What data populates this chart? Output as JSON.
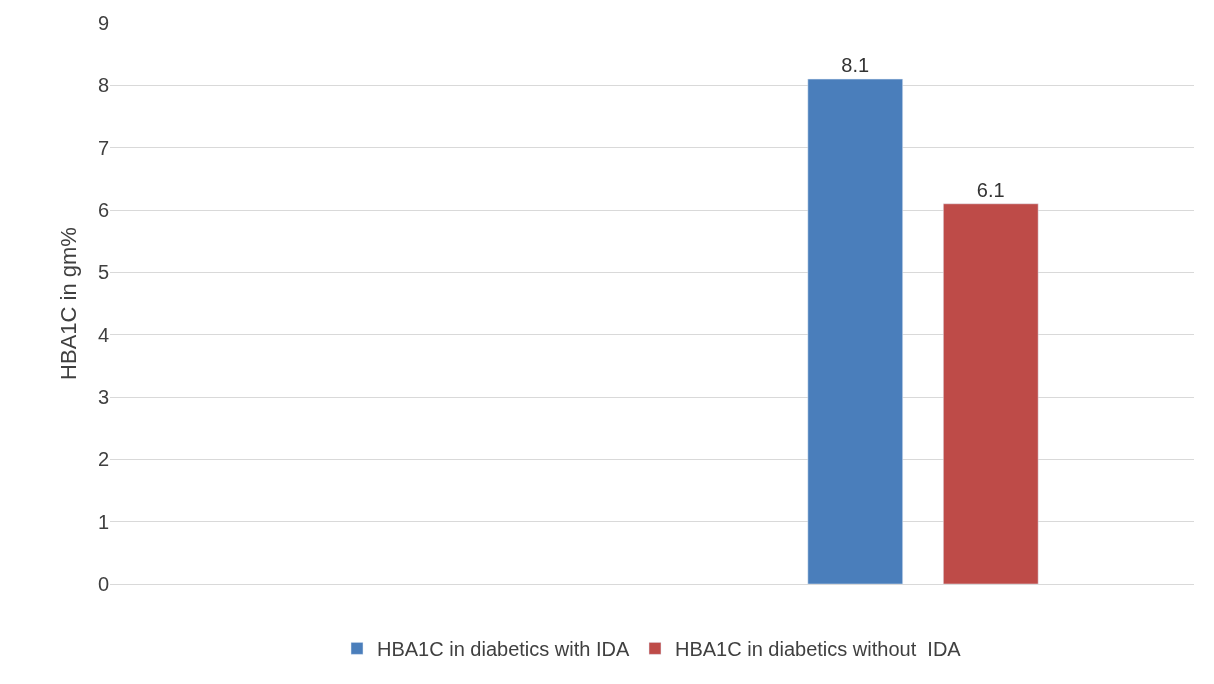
{
  "chart_data": {
    "type": "bar",
    "ylabel": "HBA1C in gm%",
    "categories": [
      null,
      null
    ],
    "series": [
      {
        "name": "HBA1C in diabetics with IDA",
        "color": "#4a7ebb",
        "values": [
          null,
          8.1
        ]
      },
      {
        "name": "HBA1C in diabetics without  IDA",
        "color": "#be4b48",
        "values": [
          null,
          6.1
        ]
      }
    ],
    "ylim": [
      0,
      9
    ],
    "yticks": [
      0,
      1,
      2,
      3,
      4,
      5,
      6,
      7,
      8,
      9
    ],
    "grid": "y",
    "legend": "bottom",
    "data_labels": true
  }
}
